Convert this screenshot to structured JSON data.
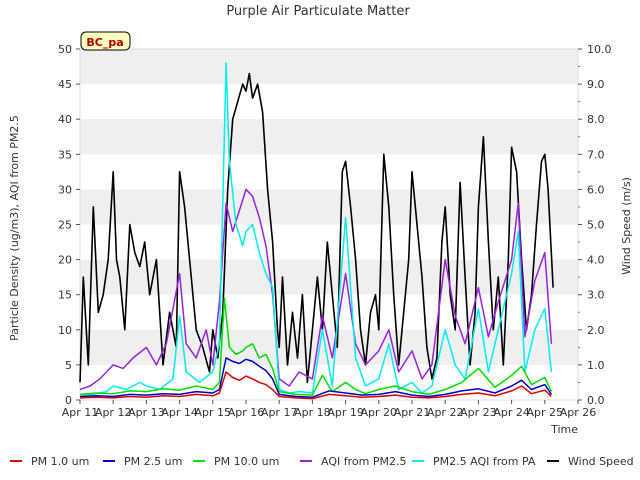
{
  "chart_data": {
    "type": "line",
    "title": "Purple Air Particulate Matter",
    "site_badge": "BC_pa",
    "xlabel": "Time",
    "ylabel_left": "Particle Density (ug/m3), AQI from PM2.5",
    "ylabel_right": "Wind Speed (m/s)",
    "x_ticks": [
      "Apr 11",
      "Apr 12",
      "Apr 13",
      "Apr 14",
      "Apr 15",
      "Apr 16",
      "Apr 17",
      "Apr 18",
      "Apr 19",
      "Apr 20",
      "Apr 21",
      "Apr 22",
      "Apr 23",
      "Apr 24",
      "Apr 25",
      "Apr 26"
    ],
    "xlim": [
      11,
      26
    ],
    "ylim_left": [
      0,
      50
    ],
    "ylim_right": [
      0,
      10
    ],
    "y_ticks_left": [
      "0",
      "5",
      "10",
      "15",
      "20",
      "25",
      "30",
      "35",
      "40",
      "45",
      "50"
    ],
    "y_ticks_right": [
      "0.0",
      "1.0",
      "2.0",
      "3.0",
      "4.0",
      "5.0",
      "6.0",
      "7.0",
      "8.0",
      "9.0",
      "10.0"
    ],
    "grid": "horizontal bands",
    "legend_position": "bottom",
    "series": [
      {
        "name": "PM 1.0 um",
        "color": "#dd0000",
        "axis": "left",
        "x": [
          11,
          11.5,
          12,
          12.5,
          13,
          13.5,
          14,
          14.5,
          15,
          15.2,
          15.4,
          15.6,
          15.8,
          16,
          16.2,
          16.4,
          16.6,
          16.8,
          17,
          17.5,
          18,
          18.5,
          19,
          19.5,
          20,
          20.5,
          21,
          21.5,
          22,
          22.5,
          23,
          23.5,
          24,
          24.3,
          24.6,
          25,
          25.2
        ],
        "values": [
          0.3,
          0.4,
          0.3,
          0.5,
          0.4,
          0.6,
          0.5,
          0.8,
          0.6,
          1.0,
          4.0,
          3.2,
          2.8,
          3.4,
          3.0,
          2.5,
          2.2,
          1.5,
          0.5,
          0.3,
          0.2,
          0.8,
          0.6,
          0.4,
          0.5,
          0.7,
          0.4,
          0.3,
          0.5,
          0.8,
          1.0,
          0.6,
          1.3,
          2.0,
          0.9,
          1.4,
          0.5
        ]
      },
      {
        "name": "PM 2.5 um",
        "color": "#0000cc",
        "axis": "left",
        "x": [
          11,
          11.5,
          12,
          12.5,
          13,
          13.5,
          14,
          14.5,
          15,
          15.2,
          15.4,
          15.6,
          15.8,
          16,
          16.2,
          16.4,
          16.6,
          16.8,
          17,
          17.5,
          18,
          18.5,
          19,
          19.5,
          20,
          20.5,
          21,
          21.5,
          22,
          22.5,
          23,
          23.5,
          24,
          24.3,
          24.6,
          25,
          25.2
        ],
        "values": [
          0.5,
          0.6,
          0.5,
          0.8,
          0.7,
          0.9,
          0.8,
          1.2,
          1.0,
          1.5,
          6.0,
          5.5,
          5.2,
          5.8,
          5.5,
          4.8,
          4.2,
          3.0,
          0.8,
          0.5,
          0.4,
          1.3,
          1.0,
          0.7,
          0.8,
          1.2,
          0.7,
          0.5,
          0.8,
          1.3,
          1.6,
          1.0,
          2.0,
          2.8,
          1.5,
          2.2,
          0.8
        ]
      },
      {
        "name": "PM 10.0 um",
        "color": "#00dd00",
        "axis": "left",
        "x": [
          11,
          11.5,
          12,
          12.5,
          13,
          13.5,
          14,
          14.5,
          15,
          15.2,
          15.35,
          15.5,
          15.7,
          15.9,
          16,
          16.2,
          16.4,
          16.6,
          16.8,
          17,
          17.5,
          18,
          18.3,
          18.6,
          19,
          19.3,
          19.6,
          20,
          20.5,
          21,
          21.5,
          22,
          22.5,
          23,
          23.5,
          24,
          24.3,
          24.6,
          25,
          25.2
        ],
        "values": [
          0.8,
          1.0,
          0.9,
          1.3,
          1.2,
          1.6,
          1.4,
          2.0,
          1.5,
          2.5,
          14.5,
          7.5,
          6.5,
          7.0,
          7.5,
          8.0,
          6.0,
          6.5,
          4.5,
          1.2,
          0.8,
          0.7,
          3.5,
          1.2,
          2.5,
          1.5,
          0.9,
          1.5,
          2.0,
          1.2,
          0.8,
          1.5,
          2.5,
          4.5,
          1.8,
          3.5,
          4.8,
          2.2,
          3.2,
          1.2
        ]
      },
      {
        "name": "AQI from PM2.5",
        "color": "#9922dd",
        "axis": "left",
        "x": [
          11,
          11.3,
          11.6,
          12,
          12.3,
          12.6,
          13,
          13.3,
          13.6,
          14,
          14.2,
          14.5,
          14.8,
          15,
          15.2,
          15.4,
          15.6,
          15.8,
          16,
          16.2,
          16.4,
          16.6,
          16.8,
          17,
          17.3,
          17.6,
          18,
          18.3,
          18.6,
          19,
          19.3,
          19.6,
          20,
          20.3,
          20.6,
          21,
          21.3,
          21.6,
          22,
          22.3,
          22.6,
          23,
          23.3,
          23.6,
          24,
          24.2,
          24.4,
          24.7,
          25,
          25.2
        ],
        "values": [
          1.5,
          2.0,
          3.0,
          5.0,
          4.5,
          6.0,
          7.5,
          5.0,
          8.0,
          18.0,
          8.0,
          6.0,
          10.0,
          5.0,
          14.0,
          28.0,
          24.0,
          27.0,
          30.0,
          29.0,
          26.0,
          22.0,
          15.0,
          3.0,
          2.0,
          4.0,
          3.0,
          12.0,
          6.0,
          18.0,
          8.0,
          5.0,
          7.0,
          10.0,
          4.0,
          7.0,
          3.0,
          5.0,
          20.0,
          12.0,
          8.0,
          16.0,
          9.0,
          14.0,
          20.0,
          28.0,
          9.0,
          17.0,
          21.0,
          8.0
        ]
      },
      {
        "name": "PM2.5 AQI from PA",
        "color": "#00eeee",
        "axis": "left",
        "x": [
          11,
          11.4,
          11.8,
          12,
          12.4,
          12.8,
          13,
          13.4,
          13.8,
          14,
          14.2,
          14.6,
          15,
          15.2,
          15.4,
          15.5,
          15.7,
          15.9,
          16,
          16.2,
          16.4,
          16.6,
          16.8,
          17,
          17.3,
          17.6,
          18,
          18.3,
          18.6,
          19,
          19.3,
          19.6,
          20,
          20.3,
          20.6,
          21,
          21.3,
          21.6,
          22,
          22.3,
          22.6,
          23,
          23.3,
          23.6,
          24,
          24.2,
          24.4,
          24.7,
          25,
          25.2
        ],
        "values": [
          0.5,
          0.8,
          1.2,
          2.0,
          1.5,
          2.5,
          2.0,
          1.5,
          3.0,
          12.0,
          4.0,
          2.5,
          4.0,
          8.0,
          48.0,
          34.0,
          25.0,
          22.0,
          24.0,
          25.0,
          21.0,
          18.0,
          16.0,
          1.5,
          1.0,
          1.2,
          1.0,
          10.0,
          2.0,
          26.0,
          6.0,
          2.0,
          3.0,
          8.0,
          1.5,
          2.5,
          1.0,
          2.0,
          10.0,
          5.0,
          3.0,
          13.0,
          4.0,
          10.0,
          18.0,
          24.0,
          4.0,
          10.0,
          13.0,
          4.0
        ]
      },
      {
        "name": "Wind Speed",
        "color": "#000000",
        "axis": "right",
        "x": [
          11,
          11.1,
          11.25,
          11.4,
          11.55,
          11.7,
          11.85,
          12,
          12.1,
          12.2,
          12.35,
          12.5,
          12.65,
          12.8,
          12.95,
          13.1,
          13.3,
          13.5,
          13.7,
          13.9,
          14,
          14.15,
          14.3,
          14.5,
          14.7,
          14.9,
          15,
          15.15,
          15.3,
          15.45,
          15.6,
          15.75,
          15.9,
          16,
          16.1,
          16.2,
          16.35,
          16.5,
          16.65,
          16.8,
          16.95,
          17,
          17.1,
          17.25,
          17.4,
          17.55,
          17.7,
          17.85,
          18,
          18.15,
          18.3,
          18.45,
          18.6,
          18.75,
          18.9,
          19,
          19.15,
          19.3,
          19.45,
          19.6,
          19.75,
          19.9,
          20,
          20.15,
          20.3,
          20.45,
          20.6,
          20.75,
          20.9,
          21,
          21.15,
          21.3,
          21.45,
          21.6,
          21.75,
          21.9,
          22,
          22.15,
          22.3,
          22.45,
          22.6,
          22.75,
          22.9,
          23,
          23.15,
          23.3,
          23.45,
          23.6,
          23.75,
          23.9,
          24,
          24.15,
          24.3,
          24.45,
          24.6,
          24.75,
          24.9,
          25,
          25.1,
          25.25
        ],
        "values": [
          0.5,
          3.5,
          1.0,
          5.5,
          2.5,
          3.0,
          4.0,
          6.5,
          4.0,
          3.5,
          2.0,
          5.0,
          4.2,
          3.8,
          4.5,
          3.0,
          4.0,
          1.0,
          2.5,
          1.5,
          6.5,
          5.5,
          4.0,
          2.0,
          1.5,
          0.8,
          2.0,
          1.2,
          2.5,
          6.0,
          8.0,
          8.5,
          9.0,
          8.8,
          9.3,
          8.6,
          9.0,
          8.2,
          6.0,
          4.5,
          2.0,
          1.5,
          3.5,
          1.0,
          2.5,
          1.2,
          3.0,
          0.5,
          2.0,
          3.5,
          2.0,
          4.5,
          3.0,
          1.5,
          6.5,
          6.8,
          5.5,
          4.0,
          2.0,
          1.0,
          2.5,
          3.0,
          2.0,
          7.0,
          5.5,
          3.0,
          1.0,
          2.5,
          4.0,
          6.5,
          5.0,
          3.5,
          1.5,
          0.6,
          1.2,
          4.5,
          5.5,
          3.0,
          2.0,
          6.2,
          3.5,
          1.0,
          2.5,
          5.5,
          7.5,
          4.5,
          2.0,
          3.5,
          1.0,
          4.0,
          7.2,
          6.5,
          4.0,
          2.0,
          3.0,
          5.0,
          6.8,
          7.0,
          6.0,
          3.2
        ]
      }
    ]
  }
}
